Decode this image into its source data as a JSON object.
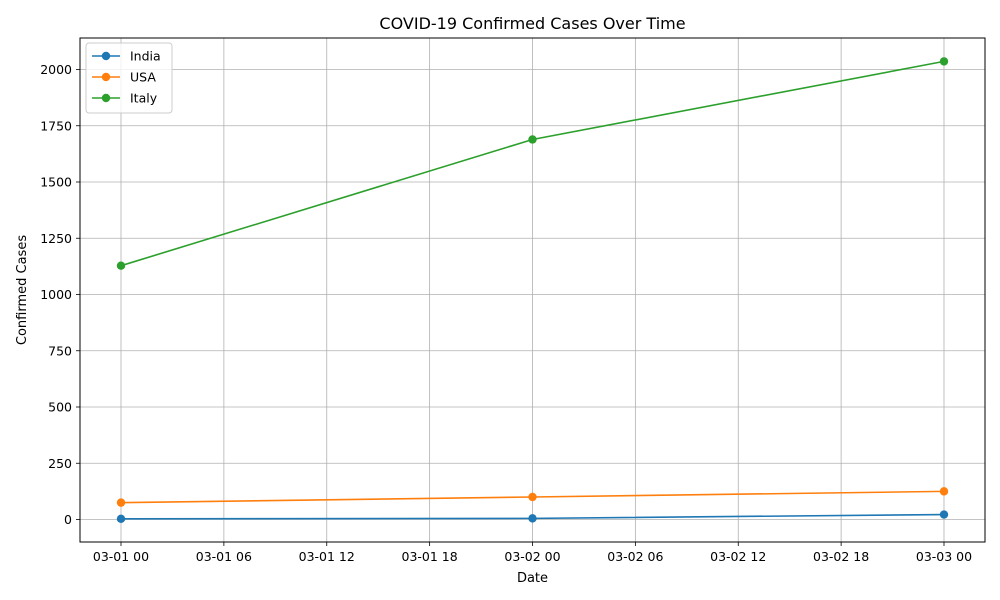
{
  "chart_data": {
    "type": "line",
    "title": "COVID-19 Confirmed Cases Over Time",
    "xlabel": "Date",
    "ylabel": "Confirmed Cases",
    "x_ticks": [
      "03-01 00",
      "03-01 06",
      "03-01 12",
      "03-01 18",
      "03-02 00",
      "03-02 06",
      "03-02 12",
      "03-02 18",
      "03-03 00"
    ],
    "x": [
      "2020-03-01",
      "2020-03-02",
      "2020-03-03"
    ],
    "y_ticks": [
      0,
      250,
      500,
      750,
      1000,
      1250,
      1500,
      1750,
      2000
    ],
    "ylim": [
      -100,
      2140
    ],
    "grid": true,
    "legend_position": "top-left",
    "series": [
      {
        "name": "India",
        "color": "#1f77b4",
        "values": [
          3,
          5,
          22
        ]
      },
      {
        "name": "USA",
        "color": "#ff7f0e",
        "values": [
          75,
          100,
          125
        ]
      },
      {
        "name": "Italy",
        "color": "#2ca02c",
        "values": [
          1128,
          1689,
          2036
        ]
      }
    ]
  }
}
